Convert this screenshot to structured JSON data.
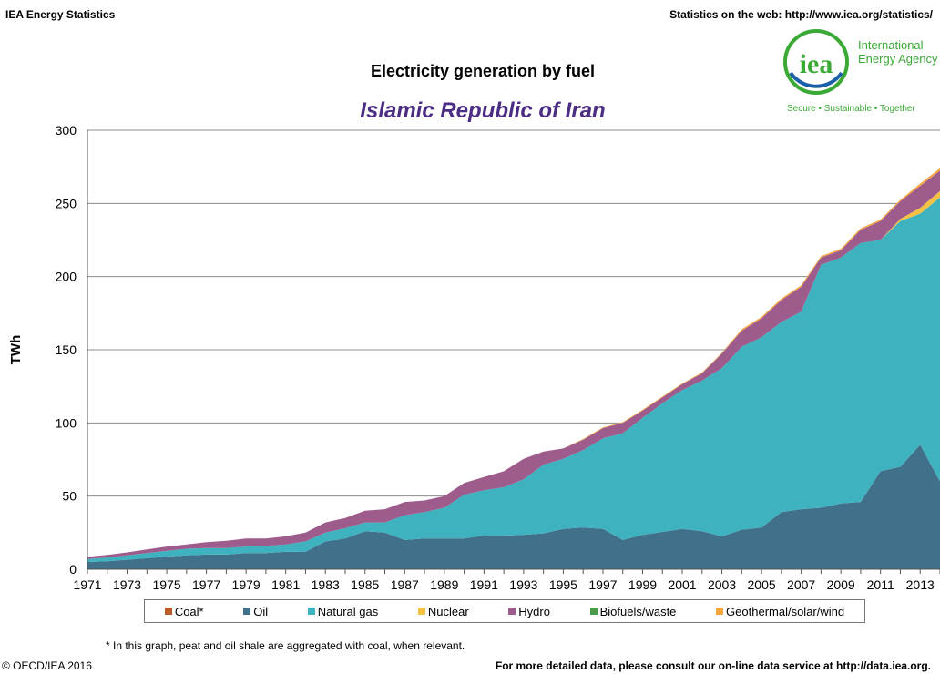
{
  "header": {
    "left": "IEA Energy Statistics",
    "right": "Statistics on the web: http://www.iea.org/statistics/"
  },
  "logo": {
    "mark": "iea",
    "name_line1": "International",
    "name_line2": "Energy Agency",
    "tagline": "Secure • Sustainable • Together",
    "colors": {
      "green": "#3aa935",
      "blue": "#1a5fa8"
    }
  },
  "footer": {
    "footnote": "* In this graph, peat and oil shale are aggregated with coal, when relevant.",
    "copyright": "© OECD/IEA 2016",
    "more_data": "For more detailed data, please consult our on-line data service at http://data.iea.org."
  },
  "chart_data": {
    "type": "area",
    "stacked": true,
    "title": "Electricity generation by fuel",
    "subtitle": "Islamic Republic of Iran",
    "ylabel": "TWh",
    "xlabel": "",
    "ylim": [
      0,
      300
    ],
    "yticks": [
      0,
      50,
      100,
      150,
      200,
      250,
      300
    ],
    "xticks": [
      "1971",
      "1973",
      "1975",
      "1977",
      "1979",
      "1981",
      "1983",
      "1985",
      "1987",
      "1989",
      "1991",
      "1993",
      "1995",
      "1997",
      "1999",
      "2001",
      "2003",
      "2005",
      "2007",
      "2009",
      "2011",
      "2013"
    ],
    "grid": "horizontal",
    "legend_position": "bottom",
    "x": [
      1971,
      1972,
      1973,
      1974,
      1975,
      1976,
      1977,
      1978,
      1979,
      1980,
      1981,
      1982,
      1983,
      1984,
      1985,
      1986,
      1987,
      1988,
      1989,
      1990,
      1991,
      1992,
      1993,
      1994,
      1995,
      1996,
      1997,
      1998,
      1999,
      2000,
      2001,
      2002,
      2003,
      2004,
      2005,
      2006,
      2007,
      2008,
      2009,
      2010,
      2011,
      2012,
      2013,
      2014
    ],
    "series": [
      {
        "name": "Coal*",
        "color": "#b85c2a",
        "values": [
          0,
          0,
          0,
          0,
          0,
          0,
          0,
          0,
          0,
          0,
          0,
          0,
          0,
          0,
          0,
          0,
          0,
          0,
          0,
          0,
          0,
          0,
          0,
          0,
          0,
          0,
          0,
          0,
          0,
          0,
          0,
          0,
          0,
          0,
          0,
          0,
          0,
          0,
          0,
          0,
          0,
          0,
          0,
          0
        ]
      },
      {
        "name": "Oil",
        "color": "#40708a",
        "values": [
          5,
          5.5,
          6.5,
          7.5,
          8.5,
          9.5,
          10,
          10,
          11,
          11,
          12,
          12,
          19,
          21,
          26,
          25,
          20,
          21,
          21,
          21,
          23,
          23,
          23.5,
          24.5,
          27.5,
          28.5,
          27.5,
          20,
          23.5,
          25.5,
          27.5,
          26,
          22.5,
          27,
          28.5,
          39,
          41,
          42,
          45,
          46,
          67,
          70,
          85,
          60
        ]
      },
      {
        "name": "Natural gas",
        "color": "#3fb2c0",
        "values": [
          2,
          2.5,
          3,
          3.5,
          4,
          4.5,
          4.5,
          4.5,
          4.5,
          5,
          5,
          7,
          6,
          7,
          6,
          7,
          17,
          18,
          21,
          30,
          31,
          33,
          38,
          47,
          48,
          53,
          62,
          73,
          80,
          88,
          95,
          103,
          115,
          125,
          130,
          130,
          135,
          166,
          168,
          177,
          158,
          168,
          158,
          194
        ]
      },
      {
        "name": "Nuclear",
        "color": "#f6c245",
        "values": [
          0,
          0,
          0,
          0,
          0,
          0,
          0,
          0,
          0,
          0,
          0,
          0,
          0,
          0,
          0,
          0,
          0,
          0,
          0,
          0,
          0,
          0,
          0,
          0,
          0,
          0,
          0,
          0,
          0,
          0,
          0,
          0,
          0,
          0,
          0,
          0,
          0,
          0,
          0,
          0,
          0,
          1.5,
          4,
          4.5
        ]
      },
      {
        "name": "Hydro",
        "color": "#9e5c8c",
        "values": [
          1.5,
          1.8,
          2,
          2.5,
          3,
          3,
          4,
          5,
          5.5,
          5,
          5.5,
          6,
          7,
          7,
          8,
          9,
          9,
          8,
          8,
          8,
          9,
          11,
          14,
          9,
          7,
          7,
          7,
          7,
          5,
          4,
          4,
          5,
          10,
          11,
          13,
          15,
          17,
          5,
          5,
          9,
          13,
          12,
          15,
          14
        ]
      },
      {
        "name": "Biofuels/waste",
        "color": "#4c9b4c",
        "values": [
          0,
          0,
          0,
          0,
          0,
          0,
          0,
          0,
          0,
          0,
          0,
          0,
          0,
          0,
          0,
          0,
          0,
          0,
          0,
          0,
          0,
          0,
          0,
          0,
          0,
          0,
          0,
          0,
          0,
          0,
          0,
          0,
          0,
          0,
          0,
          0,
          0,
          0,
          0,
          0,
          0,
          0,
          0,
          0
        ]
      },
      {
        "name": "Geothermal/solar/wind",
        "color": "#f7a540",
        "values": [
          0,
          0,
          0,
          0,
          0,
          0,
          0,
          0,
          0,
          0,
          0,
          0,
          0,
          0,
          0,
          0,
          0,
          0,
          0,
          0,
          0,
          0,
          0,
          0,
          0,
          0.5,
          0.5,
          0.5,
          0.5,
          0.5,
          0.5,
          0.5,
          0.5,
          1,
          1,
          1,
          1,
          1,
          1,
          1,
          1,
          1,
          1.5,
          1.5
        ]
      }
    ]
  }
}
